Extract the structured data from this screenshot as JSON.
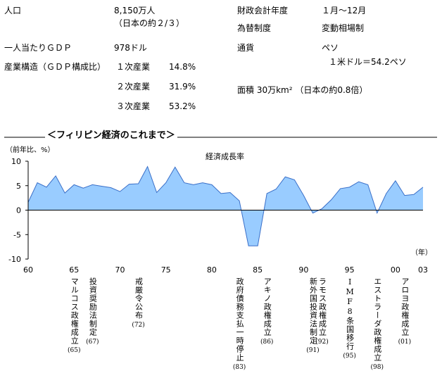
{
  "info": {
    "left": [
      {
        "label": "人口",
        "values": [
          "8,150万人",
          "（日本の約２/３）"
        ]
      },
      {
        "label": "一人当たりＧＤＰ",
        "values": [
          "978ドル"
        ]
      },
      {
        "label": "産業構造（ＧＤＰ構成比）",
        "rows": [
          [
            "１次産業",
            "14.8%"
          ],
          [
            "２次産業",
            "31.9%"
          ],
          [
            "３次産業",
            "53.2%"
          ]
        ]
      }
    ],
    "right": [
      {
        "label": "財政会計年度",
        "values": [
          "１月～12月"
        ]
      },
      {
        "label": "為替制度",
        "values": [
          "変動相場制"
        ]
      },
      {
        "label": "通貨",
        "values": [
          "ペソ",
          "１米ドル＝54.2ペソ"
        ]
      },
      {
        "label": "面積 30万km² （日本の約0.8倍）"
      }
    ]
  },
  "section_title": "＜フィリピン経済のこれまで＞",
  "chart_data": {
    "type": "area",
    "title": "経済成長率",
    "y_label": "（前年比、%）",
    "x_label": "（年）",
    "x": [
      1960,
      1961,
      1962,
      1963,
      1964,
      1965,
      1966,
      1967,
      1968,
      1969,
      1970,
      1971,
      1972,
      1973,
      1974,
      1975,
      1976,
      1977,
      1978,
      1979,
      1980,
      1981,
      1982,
      1983,
      1984,
      1985,
      1986,
      1987,
      1988,
      1989,
      1990,
      1991,
      1992,
      1993,
      1994,
      1995,
      1996,
      1997,
      1998,
      1999,
      2000,
      2001,
      2002,
      2003
    ],
    "series": [
      {
        "name": "経済成長率",
        "color": "#99ccff",
        "values": [
          1.6,
          5.6,
          4.7,
          7.0,
          3.5,
          5.2,
          4.5,
          5.2,
          4.9,
          4.6,
          3.8,
          5.3,
          5.4,
          8.9,
          3.6,
          5.6,
          8.8,
          5.6,
          5.2,
          5.6,
          5.2,
          3.4,
          3.6,
          1.9,
          -7.3,
          -7.3,
          3.4,
          4.3,
          6.8,
          6.2,
          3.0,
          -0.6,
          0.3,
          2.1,
          4.4,
          4.7,
          5.8,
          5.2,
          -0.6,
          3.4,
          6.0,
          3.0,
          3.2,
          4.7
        ]
      }
    ],
    "xlim": [
      1960,
      2003
    ],
    "xticks": [
      {
        "value": 1960,
        "label": "60"
      },
      {
        "value": 1965,
        "label": "65"
      },
      {
        "value": 1970,
        "label": "70"
      },
      {
        "value": 1975,
        "label": "75"
      },
      {
        "value": 1980,
        "label": "80"
      },
      {
        "value": 1985,
        "label": "85"
      },
      {
        "value": 1990,
        "label": "90"
      },
      {
        "value": 1995,
        "label": "95"
      },
      {
        "value": 2000,
        "label": "00"
      },
      {
        "value": 2003,
        "label": "03"
      }
    ],
    "ylim": [
      -10,
      10
    ],
    "yticks": [
      -10,
      -5,
      0,
      5,
      10
    ],
    "annotations": [
      {
        "x": 1965,
        "text": "マルコス政権成立",
        "label": "(65)"
      },
      {
        "x": 1967,
        "text": "投資奨励法制定",
        "label": "(67)"
      },
      {
        "x": 1972,
        "text": "戒厳令公布",
        "label": "(72)"
      },
      {
        "x": 1983,
        "text": "政府債務支払一時停止",
        "label": "(83)"
      },
      {
        "x": 1986,
        "text": "アキノ政権成立",
        "label": "(86)"
      },
      {
        "x": 1991,
        "text": "新外国投資法制定",
        "label": "(91)"
      },
      {
        "x": 1992,
        "text": "ラモス政権成立",
        "label": "(92)"
      },
      {
        "x": 1995,
        "text": "IMF8条国移行",
        "label": "(95)"
      },
      {
        "x": 1998,
        "text": "エストラーダ政権成立",
        "label": "(98)"
      },
      {
        "x": 2001,
        "text": "アロヨ政権成立",
        "label": "(01)"
      }
    ]
  }
}
